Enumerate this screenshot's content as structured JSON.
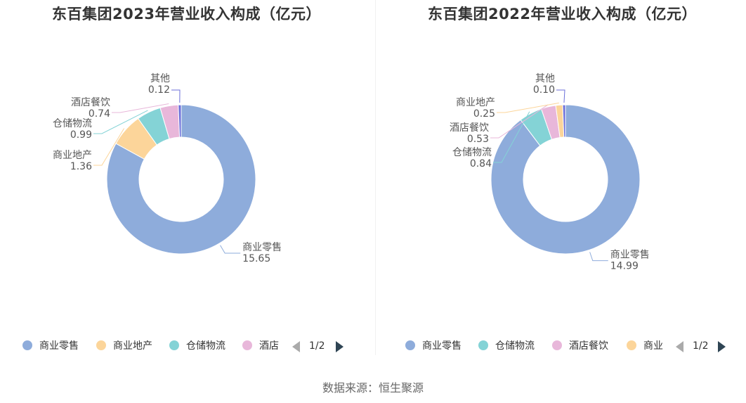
{
  "chart_data": [
    {
      "type": "pie",
      "title": "东百集团2023年营业收入构成（亿元）",
      "series": [
        {
          "name": "商业零售",
          "value": 15.65,
          "label": "15.65",
          "color": "#8eacdb"
        },
        {
          "name": "商业地产",
          "value": 1.36,
          "label": "1.36",
          "color": "#fcd59a"
        },
        {
          "name": "仓储物流",
          "value": 0.99,
          "label": "0.99",
          "color": "#84d3d6"
        },
        {
          "name": "酒店餐饮",
          "value": 0.74,
          "label": "0.74",
          "color": "#e8b7da"
        },
        {
          "name": "其他",
          "value": 0.12,
          "label": "0.12",
          "color": "#6b6fd9"
        }
      ],
      "legend": {
        "items": [
          {
            "label": "商业零售",
            "color": "#8eacdb"
          },
          {
            "label": "商业地产",
            "color": "#fcd59a"
          },
          {
            "label": "仓储物流",
            "color": "#84d3d6"
          },
          {
            "label": "酒店",
            "color": "#e8b7da"
          }
        ],
        "page": "1/2"
      }
    },
    {
      "type": "pie",
      "title": "东百集团2022年营业收入构成（亿元）",
      "series": [
        {
          "name": "商业零售",
          "value": 14.99,
          "label": "14.99",
          "color": "#8eacdb"
        },
        {
          "name": "仓储物流",
          "value": 0.84,
          "label": "0.84",
          "color": "#84d3d6"
        },
        {
          "name": "酒店餐饮",
          "value": 0.53,
          "label": "0.53",
          "color": "#e8b7da"
        },
        {
          "name": "商业地产",
          "value": 0.25,
          "label": "0.25",
          "color": "#fcd59a"
        },
        {
          "name": "其他",
          "value": 0.1,
          "label": "0.10",
          "color": "#6b6fd9"
        }
      ],
      "legend": {
        "items": [
          {
            "label": "商业零售",
            "color": "#8eacdb"
          },
          {
            "label": "仓储物流",
            "color": "#84d3d6"
          },
          {
            "label": "酒店餐饮",
            "color": "#e8b7da"
          },
          {
            "label": "商业",
            "color": "#fcd59a"
          }
        ],
        "page": "1/2"
      }
    }
  ],
  "footer": {
    "source": "数据来源：恒生聚源"
  }
}
